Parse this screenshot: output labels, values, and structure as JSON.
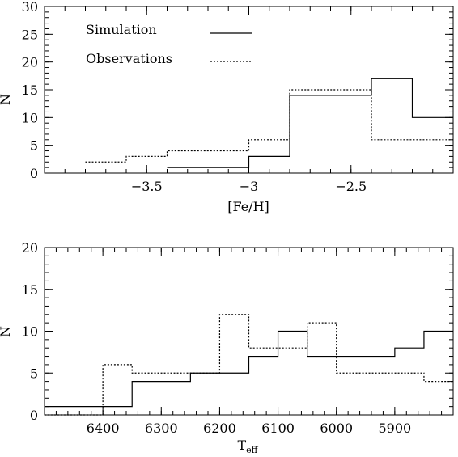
{
  "chart_data": [
    {
      "type": "histogram",
      "xlabel": "[Fe/H]",
      "ylabel": "N",
      "xlim": [
        -4.0,
        -2.0
      ],
      "ylim": [
        0,
        30
      ],
      "xticks": [
        -3.5,
        -3,
        -2.5
      ],
      "xtick_labels": [
        "−3.5",
        "−3",
        "−2.5"
      ],
      "yticks": [
        0,
        5,
        10,
        15,
        20,
        25,
        30
      ],
      "ytick_labels": [
        "0",
        "5",
        "10",
        "15",
        "20",
        "25",
        "30"
      ],
      "legend": {
        "position": "top-left",
        "entries": [
          {
            "label": "Simulation",
            "style": "solid"
          },
          {
            "label": "Observations",
            "style": "dotted"
          }
        ]
      },
      "series": [
        {
          "name": "Simulation",
          "style": "solid",
          "bin_edges": [
            -3.4,
            -3.0,
            -2.8,
            -2.4,
            -2.2,
            -2.0
          ],
          "counts": [
            1,
            3,
            14,
            17,
            10
          ]
        },
        {
          "name": "Observations",
          "style": "dotted",
          "bin_edges": [
            -3.8,
            -3.6,
            -3.4,
            -3.0,
            -2.8,
            -2.4,
            -2.0
          ],
          "counts": [
            2,
            3,
            4,
            6,
            15,
            6
          ]
        }
      ]
    },
    {
      "type": "histogram",
      "xlabel_main": "T",
      "xlabel_sub": "eff",
      "ylabel": "N",
      "xlim": [
        6500,
        5800
      ],
      "ylim": [
        0,
        20
      ],
      "xticks": [
        6400,
        6300,
        6200,
        6100,
        6000,
        5900
      ],
      "xtick_labels": [
        "6400",
        "6300",
        "6200",
        "6100",
        "6000",
        "5900"
      ],
      "yticks": [
        0,
        5,
        10,
        15,
        20
      ],
      "ytick_labels": [
        "0",
        "5",
        "10",
        "15",
        "20"
      ],
      "series": [
        {
          "name": "Simulation",
          "style": "solid",
          "bin_edges": [
            6500,
            6350,
            6300,
            6250,
            6200,
            6150,
            6100,
            6050,
            6000,
            5950,
            5900,
            5850,
            5800
          ],
          "counts": [
            1,
            4,
            4,
            5,
            5,
            7,
            10,
            7,
            7,
            7,
            8,
            10
          ]
        },
        {
          "name": "Observations",
          "style": "dotted",
          "bin_edges": [
            6500,
            6450,
            6400,
            6350,
            6300,
            6250,
            6200,
            6150,
            6100,
            6050,
            6000,
            5950,
            5900,
            5850,
            5800
          ],
          "counts": [
            0,
            0,
            6,
            5,
            5,
            5,
            12,
            8,
            8,
            11,
            5,
            5,
            5,
            4
          ]
        }
      ]
    }
  ]
}
